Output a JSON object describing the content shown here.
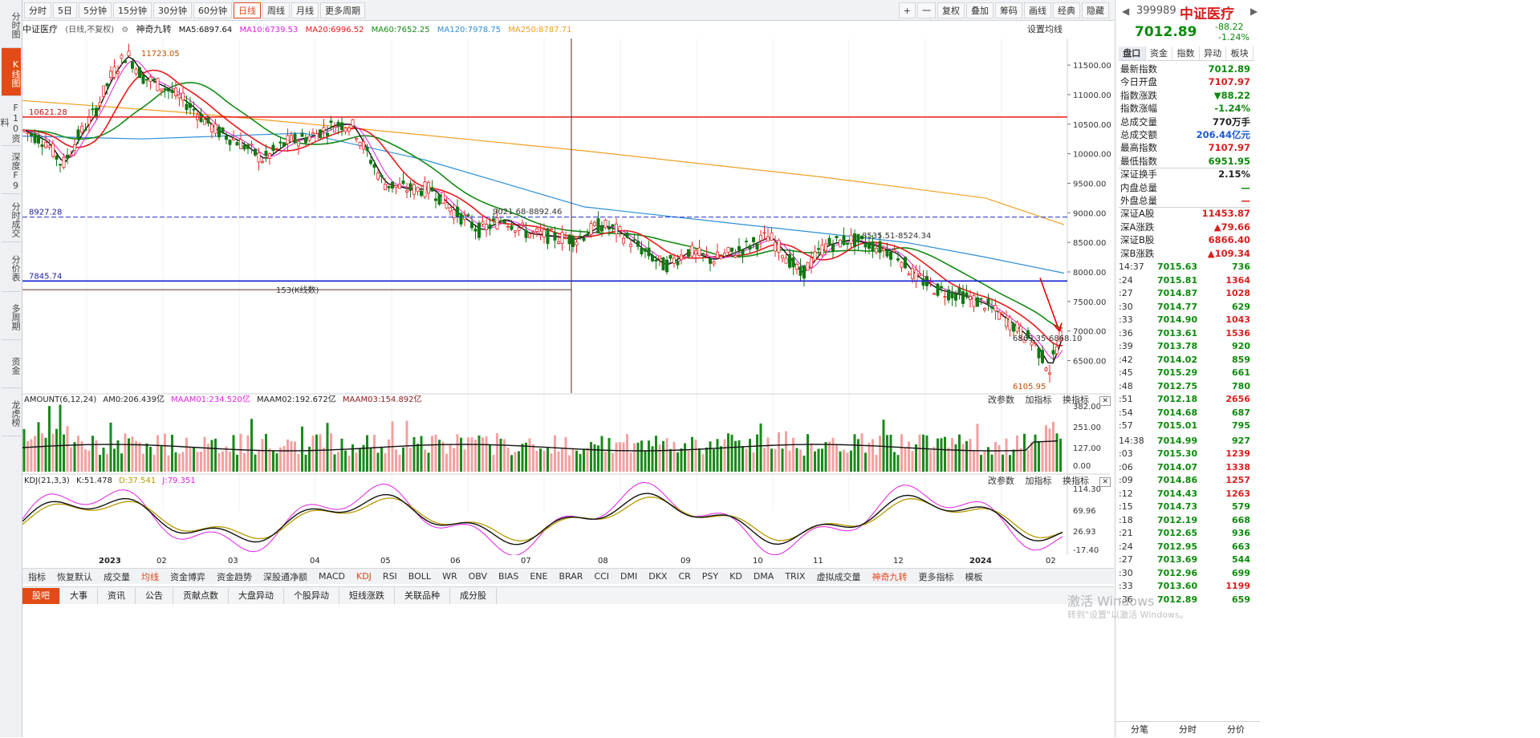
{
  "sidebar": {
    "tabs": [
      "分时图",
      "K线图",
      "F10资料",
      "深度F9",
      "分时成交",
      "分价表",
      "多周期",
      "资金",
      "龙虎榜"
    ],
    "active_index": 1
  },
  "toolbar": {
    "periods": [
      "分时",
      "5日",
      "5分钟",
      "15分钟",
      "30分钟",
      "60分钟",
      "日线",
      "周线",
      "月线",
      "更多周期"
    ],
    "active_period": "日线",
    "right_buttons": [
      "+",
      "一",
      "复权",
      "叠加",
      "筹码",
      "画线",
      "经典",
      "隐藏"
    ]
  },
  "info": {
    "name": "中证医疗",
    "mode": "(日线,不复权)",
    "indicator_name": "神奇九转",
    "ma5": "MA5:6897.64",
    "ma10": "MA10:6739.53",
    "ma20": "MA20:6996.52",
    "ma60": "MA60:7652.25",
    "ma120": "MA120:7978.75",
    "ma250": "MA250:8787.71",
    "settings": "设置均线"
  },
  "colors": {
    "ma5": "#111111",
    "ma10": "#e020e0",
    "ma20": "#e81a1a",
    "ma60": "#148a14",
    "ma120": "#2d8fd8",
    "ma250": "#f0a020",
    "up": "#e62828",
    "down": "#107810"
  },
  "annotations": {
    "high": "11723.05",
    "low": "6105.95",
    "level_red": "10621.28",
    "level_dash": "8927.28",
    "level_blue": "7845.74",
    "count_label": "153(K线数)",
    "range1": "9021.68-8892.46",
    "range2": "8535.51-8524.34",
    "range3": "6869.35-6868.10"
  },
  "y_axis": [
    "11500.00",
    "11000.00",
    "10500.00",
    "10000.00",
    "9500.00",
    "9000.00",
    "8500.00",
    "8000.00",
    "7500.00",
    "7000.00",
    "6500.00"
  ],
  "amount_panel": {
    "title": "AMOUNT(6,12,24)",
    "am0": "AM0:206.439亿",
    "m1": "MAAM01:234.520亿",
    "m2": "MAAM02:192.672亿",
    "m3": "MAAM03:154.892亿",
    "axis": [
      "382.00",
      "251.00",
      "127.00",
      "0.00"
    ]
  },
  "kdj_panel": {
    "title": "KDJ(21,3,3)",
    "k": "K:51.478",
    "d": "D:37.541",
    "j": "J:79.351",
    "axis": [
      "114.30",
      "69.96",
      "26.93",
      "-17.40"
    ]
  },
  "panel_tools": [
    "改参数",
    "加指标",
    "换指标"
  ],
  "x_labels": [
    "2023",
    "02",
    "03",
    "04",
    "05",
    "06",
    "07",
    "08",
    "09",
    "10",
    "11",
    "12",
    "2024",
    "02"
  ],
  "indicator_tabs": [
    "指标",
    "恢复默认",
    "成交量",
    "均线",
    "资金博弈",
    "资金趋势",
    "深股通净额",
    "MACD",
    "KDJ",
    "RSI",
    "BOLL",
    "WR",
    "OBV",
    "BIAS",
    "ENE",
    "BRAR",
    "CCI",
    "DMI",
    "DKX",
    "CR",
    "PSY",
    "KD",
    "DMA",
    "TRIX",
    "虚拟成交量",
    "神奇九转",
    "更多指标",
    "模板"
  ],
  "bottom_tabs": [
    "股吧",
    "大事",
    "资讯",
    "公告",
    "贡献点数",
    "大盘异动",
    "个股异动",
    "短线涨跌",
    "关联品种",
    "成分股"
  ],
  "quote": {
    "code": "399989",
    "name": "中证医疗",
    "price": "7012.89",
    "change": "-88.22",
    "pct": "-1.24%",
    "tabs": [
      "盘口",
      "资金",
      "指数",
      "异动",
      "板块"
    ],
    "stats": [
      {
        "label": "最新指数",
        "value": "7012.89",
        "color": "green"
      },
      {
        "label": "今日开盘",
        "value": "7107.97",
        "color": "red"
      },
      {
        "label": "指数涨跌",
        "value": "▼88.22",
        "color": "green"
      },
      {
        "label": "指数涨幅",
        "value": "-1.24%",
        "color": "green"
      },
      {
        "label": "总成交量",
        "value": "770万手",
        "color": "black"
      },
      {
        "label": "总成交额",
        "value": "206.44亿元",
        "color": "blue"
      },
      {
        "label": "最高指数",
        "value": "7107.97",
        "color": "red"
      },
      {
        "label": "最低指数",
        "value": "6951.95",
        "color": "green"
      },
      {
        "label": "深证换手",
        "value": "2.15%",
        "color": "black"
      },
      {
        "label": "内盘总量",
        "value": "—",
        "color": "green"
      },
      {
        "label": "外盘总量",
        "value": "—",
        "color": "red"
      },
      {
        "label": "深证A股",
        "value": "11453.87",
        "color": "red"
      },
      {
        "label": "深A涨跌",
        "value": "▲79.66",
        "color": "red"
      },
      {
        "label": "深证B股",
        "value": "6866.40",
        "color": "red"
      },
      {
        "label": "深B涨跌",
        "value": "▲109.34",
        "color": "red"
      }
    ],
    "ticks": [
      {
        "t": "14:37",
        "p": "7015.63",
        "v": "736"
      },
      {
        "t": ":24",
        "p": "7015.81",
        "v": "1364"
      },
      {
        "t": ":27",
        "p": "7014.87",
        "v": "1028"
      },
      {
        "t": ":30",
        "p": "7014.77",
        "v": "629"
      },
      {
        "t": ":33",
        "p": "7014.90",
        "v": "1043"
      },
      {
        "t": ":36",
        "p": "7013.61",
        "v": "1536"
      },
      {
        "t": ":39",
        "p": "7013.78",
        "v": "920"
      },
      {
        "t": ":42",
        "p": "7014.02",
        "v": "859"
      },
      {
        "t": ":45",
        "p": "7015.29",
        "v": "661"
      },
      {
        "t": ":48",
        "p": "7012.75",
        "v": "780"
      },
      {
        "t": ":51",
        "p": "7012.18",
        "v": "2656"
      },
      {
        "t": ":54",
        "p": "7014.68",
        "v": "687"
      },
      {
        "t": ":57",
        "p": "7015.01",
        "v": "795"
      },
      {
        "t": "14:38",
        "p": "7014.99",
        "v": "927"
      },
      {
        "t": ":03",
        "p": "7015.30",
        "v": "1239"
      },
      {
        "t": ":06",
        "p": "7014.07",
        "v": "1338"
      },
      {
        "t": ":09",
        "p": "7014.86",
        "v": "1257"
      },
      {
        "t": ":12",
        "p": "7014.43",
        "v": "1263"
      },
      {
        "t": ":15",
        "p": "7014.73",
        "v": "579"
      },
      {
        "t": ":18",
        "p": "7012.19",
        "v": "668"
      },
      {
        "t": ":21",
        "p": "7012.65",
        "v": "936"
      },
      {
        "t": ":24",
        "p": "7012.95",
        "v": "663"
      },
      {
        "t": ":27",
        "p": "7013.69",
        "v": "544"
      },
      {
        "t": ":30",
        "p": "7012.96",
        "v": "699"
      },
      {
        "t": ":33",
        "p": "7013.60",
        "v": "1199"
      },
      {
        "t": ":36",
        "p": "7012.89",
        "v": "659"
      }
    ],
    "bottom": [
      "分笔",
      "分时",
      "分价"
    ]
  },
  "watermark": {
    "line1": "激活 Windows",
    "line2": "转到\"设置\"以激活 Windows。"
  }
}
